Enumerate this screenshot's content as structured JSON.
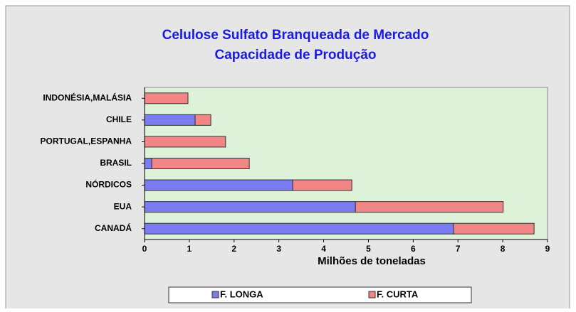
{
  "chart_data": {
    "type": "stacked-barh",
    "title": [
      "Celulose Sulfato Branqueada de Mercado",
      "Capacidade de Produção"
    ],
    "x_label": "Milhões de toneladas",
    "categories": [
      "INDONÉSIA,MALÁSIA",
      "CHILE",
      "PORTUGAL,ESPANHA",
      "BRASIL",
      "NÓRDICOS",
      "EUA",
      "CANADÁ"
    ],
    "series": [
      {
        "name": "F. LONGA",
        "color": "#7b7bf2",
        "values": [
          0,
          1.13,
          0,
          0.16,
          3.31,
          4.71,
          6.9
        ]
      },
      {
        "name": "F. CURTA",
        "color": "#f28585",
        "values": [
          0.97,
          0.35,
          1.81,
          2.18,
          1.32,
          3.3,
          1.8
        ]
      }
    ],
    "xlim": [
      0,
      9
    ],
    "xticks": [
      0,
      1,
      2,
      3,
      4,
      5,
      6,
      7,
      8,
      9
    ]
  }
}
